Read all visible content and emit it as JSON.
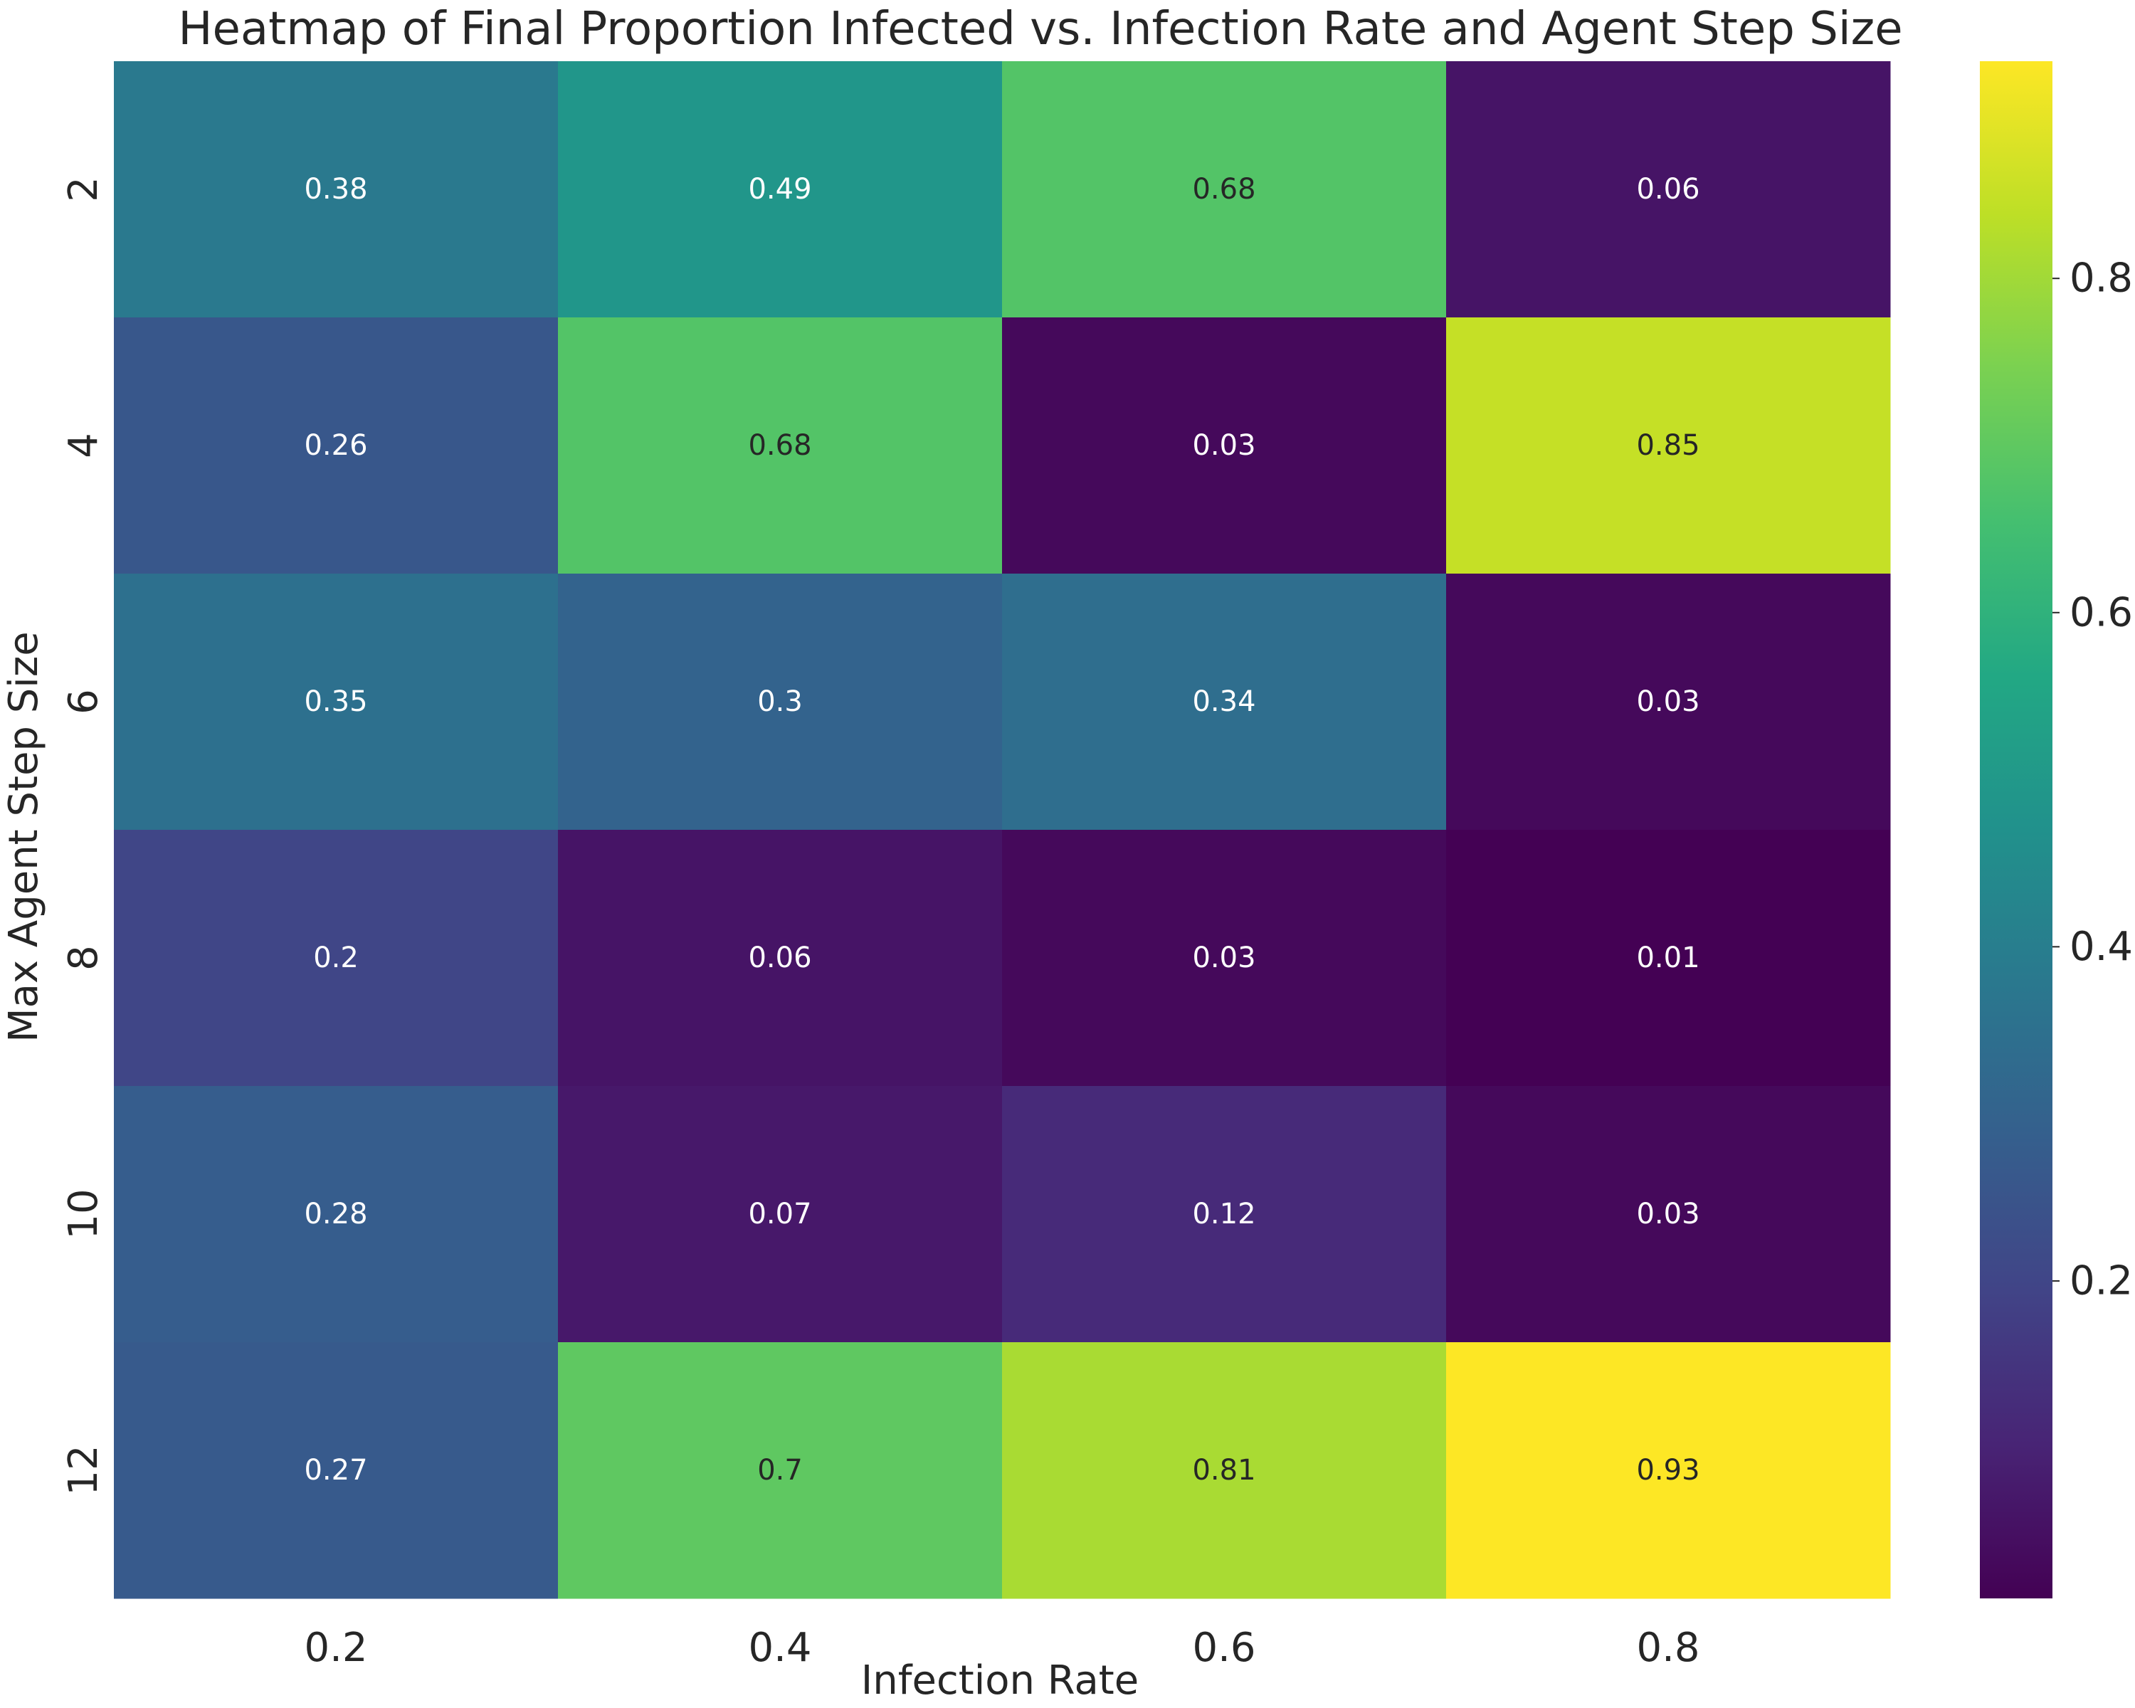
{
  "chart_data": {
    "type": "heatmap",
    "title": "Heatmap of Final Proportion Infected vs. Infection Rate and Agent Step Size",
    "xlabel": "Infection Rate",
    "ylabel": "Max Agent Step Size",
    "x_categories": [
      "0.2",
      "0.4",
      "0.6",
      "0.8"
    ],
    "y_categories": [
      "2",
      "4",
      "6",
      "8",
      "10",
      "12"
    ],
    "values": [
      [
        0.38,
        0.49,
        0.68,
        0.06
      ],
      [
        0.26,
        0.68,
        0.03,
        0.85
      ],
      [
        0.35,
        0.3,
        0.34,
        0.03
      ],
      [
        0.2,
        0.06,
        0.03,
        0.01
      ],
      [
        0.28,
        0.07,
        0.12,
        0.03
      ],
      [
        0.27,
        0.7,
        0.81,
        0.93
      ]
    ],
    "colormap": "viridis",
    "colorbar": {
      "range": [
        0.01,
        0.93
      ],
      "ticks": [
        "0.2",
        "0.4",
        "0.6",
        "0.8"
      ],
      "tick_values": [
        0.2,
        0.4,
        0.6,
        0.8
      ]
    },
    "grid": false
  }
}
